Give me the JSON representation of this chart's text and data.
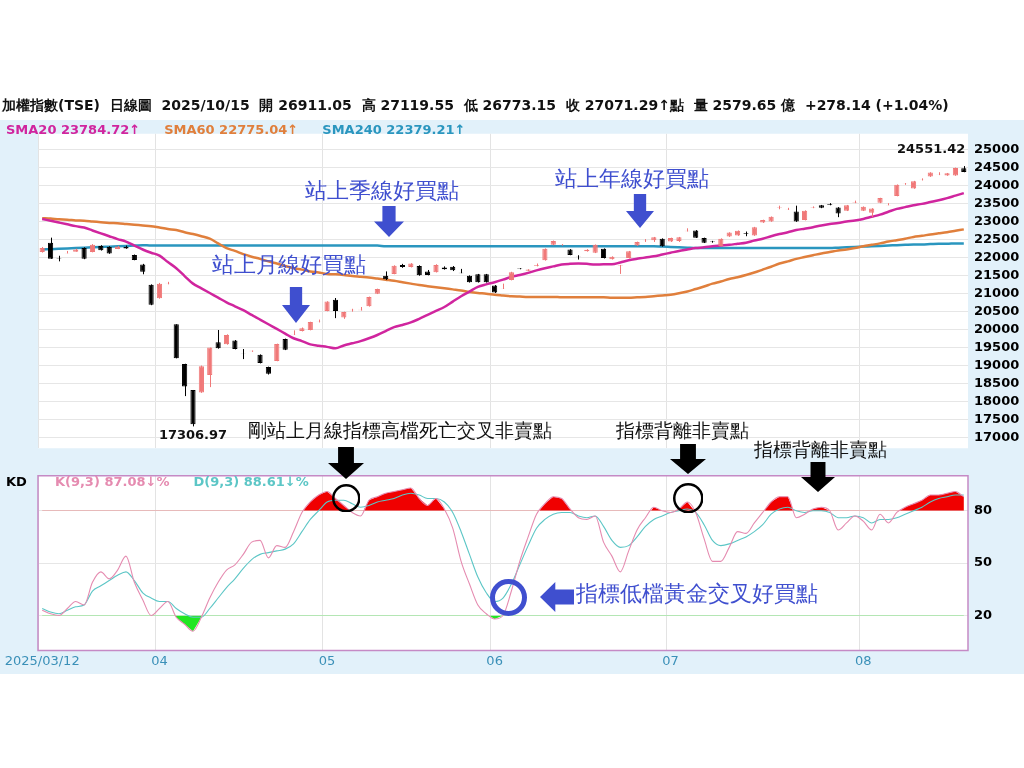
{
  "chart_data": [
    {
      "type": "candlestick",
      "title": "加權指數(TSE)  日線圖  2025/10/15  開 26911.05  高 27119.55  低 26773.15  收 27071.29↑點  量 2579.65 億  +278.14 (+1.04%)",
      "categories": [
        "2025/03/12",
        null,
        null,
        null,
        null,
        null,
        null,
        null,
        null,
        null,
        null,
        null,
        null,
        null,
        "04",
        null,
        null,
        null,
        null,
        null,
        null,
        null,
        null,
        null,
        null,
        null,
        null,
        null,
        null,
        null,
        null,
        null,
        null,
        null,
        "05",
        null,
        null,
        null,
        null,
        null,
        null,
        null,
        null,
        null,
        null,
        null,
        null,
        null,
        null,
        null,
        null,
        null,
        null,
        null,
        "06",
        null,
        null,
        null,
        null,
        null,
        null,
        null,
        null,
        null,
        null,
        null,
        null,
        null,
        null,
        null,
        null,
        null,
        null,
        null,
        null,
        "07",
        null,
        null,
        null,
        null,
        null,
        null,
        null,
        null,
        null,
        null,
        null,
        null,
        null,
        null,
        null,
        null,
        null,
        null,
        null,
        null,
        null,
        null,
        "08",
        null,
        null,
        null,
        null,
        null,
        null,
        null,
        null,
        null,
        null,
        null,
        null
      ],
      "ohlc": [
        [
          22160,
          22300,
          22143,
          22270
        ],
        [
          22420,
          22560,
          21970,
          21970
        ],
        [
          21990,
          22056,
          21900,
          21980
        ],
        [
          22120,
          22190,
          22120,
          22125
        ],
        [
          22170,
          22250,
          22170,
          22230
        ],
        [
          22270,
          22290,
          21960,
          21970
        ],
        [
          22160,
          22380,
          22150,
          22360
        ],
        [
          22330,
          22350,
          22200,
          22210
        ],
        [
          22300,
          22320,
          22110,
          22120
        ],
        [
          22245,
          22330,
          22240,
          22315
        ],
        [
          22310,
          22340,
          22250,
          22260
        ],
        [
          22080,
          22090,
          21930,
          21940
        ],
        [
          21810,
          21830,
          21540,
          21610
        ],
        [
          21250,
          21260,
          20680,
          20690
        ],
        [
          20870,
          21300,
          20860,
          21280
        ],
        [
          21290,
          21330,
          21260,
          21300
        ],
        [
          20150,
          20150,
          19200,
          19200
        ],
        [
          19040,
          19050,
          18150,
          18420
        ],
        [
          18320,
          18320,
          17306.97,
          17370
        ],
        [
          18250,
          19000,
          18240,
          18980
        ],
        [
          18740,
          19500,
          18400,
          19500
        ],
        [
          19650,
          19990,
          19470,
          19480
        ],
        [
          19590,
          19870,
          19580,
          19850
        ],
        [
          19700,
          19710,
          19450,
          19460
        ],
        [
          19350,
          19460,
          19180,
          19340
        ],
        [
          19400,
          19420,
          19380,
          19410
        ],
        [
          19300,
          19310,
          19060,
          19070
        ],
        [
          18960,
          18970,
          18750,
          18770
        ],
        [
          19130,
          19610,
          19120,
          19600
        ],
        [
          19740,
          19750,
          19430,
          19440
        ],
        [
          19850,
          19980,
          19850,
          19860
        ],
        [
          19960,
          20060,
          19950,
          20040
        ],
        [
          19990,
          20220,
          19980,
          20210
        ],
        [
          20230,
          20280,
          20200,
          20240
        ],
        [
          20520,
          20790,
          20510,
          20780
        ],
        [
          20830,
          20880,
          20320,
          20520
        ],
        [
          20340,
          20500,
          20300,
          20490
        ],
        [
          20540,
          20580,
          20500,
          20550
        ],
        [
          20540,
          20630,
          20530,
          20550
        ],
        [
          20650,
          20920,
          20640,
          20910
        ],
        [
          21000,
          21140,
          20990,
          21130
        ],
        [
          21500,
          21620,
          21380,
          21400
        ],
        [
          21550,
          21790,
          21540,
          21780
        ],
        [
          21800,
          21830,
          21720,
          21740
        ],
        [
          21740,
          21850,
          21730,
          21840
        ],
        [
          21770,
          21790,
          21500,
          21510
        ],
        [
          21620,
          21660,
          21510,
          21520
        ],
        [
          21600,
          21820,
          21590,
          21800
        ],
        [
          21730,
          21760,
          21670,
          21680
        ],
        [
          21750,
          21770,
          21630,
          21650
        ],
        [
          21580,
          21690,
          21570,
          21570
        ],
        [
          21500,
          21510,
          21310,
          21320
        ],
        [
          21540,
          21550,
          21310,
          21320
        ],
        [
          21540,
          21550,
          21310,
          21320
        ],
        [
          21230,
          21240,
          21020,
          21030
        ],
        [
          21150,
          21280,
          21130,
          21160
        ],
        [
          21380,
          21610,
          21370,
          21600
        ],
        [
          21700,
          21710,
          21680,
          21690
        ],
        [
          21640,
          21680,
          21630,
          21670
        ],
        [
          21780,
          21840,
          21760,
          21800
        ],
        [
          21930,
          22260,
          21920,
          22250
        ],
        [
          22360,
          22480,
          22350,
          22470
        ],
        [
          22350,
          22380,
          22340,
          22360
        ],
        [
          22230,
          22240,
          22070,
          22080
        ],
        [
          22050,
          22070,
          21950,
          22040
        ],
        [
          22180,
          22240,
          22170,
          22220
        ],
        [
          22140,
          22370,
          22130,
          22360
        ],
        [
          22250,
          22260,
          21980,
          21990
        ],
        [
          21960,
          22040,
          21950,
          22030
        ],
        [
          21780,
          21800,
          21550,
          21790
        ],
        [
          21990,
          22190,
          21980,
          22180
        ],
        [
          22340,
          22450,
          22330,
          22440
        ],
        [
          22480,
          22520,
          22440,
          22490
        ],
        [
          22490,
          22580,
          22440,
          22570
        ],
        [
          22530,
          22540,
          22310,
          22320
        ],
        [
          22450,
          22560,
          22440,
          22550
        ],
        [
          22470,
          22580,
          22440,
          22570
        ],
        [
          22740,
          22820,
          22730,
          22750
        ],
        [
          22760,
          22770,
          22550,
          22560
        ],
        [
          22550,
          22560,
          22410,
          22420
        ],
        [
          22450,
          22470,
          22420,
          22440
        ],
        [
          22330,
          22540,
          22320,
          22530
        ],
        [
          22590,
          22710,
          22580,
          22700
        ],
        [
          22620,
          22760,
          22610,
          22750
        ],
        [
          22680,
          22730,
          22600,
          22660
        ],
        [
          22620,
          22860,
          22610,
          22850
        ],
        [
          22980,
          23060,
          22970,
          23050
        ],
        [
          23010,
          23150,
          23000,
          23140
        ],
        [
          23400,
          23450,
          23350,
          23410
        ],
        [
          23350,
          23390,
          23330,
          23360
        ],
        [
          23290,
          23450,
          23000,
          23010
        ],
        [
          23050,
          23320,
          23040,
          23310
        ],
        [
          23400,
          23430,
          23380,
          23410
        ],
        [
          23460,
          23470,
          23380,
          23390
        ],
        [
          23490,
          23520,
          23460,
          23470
        ],
        [
          23400,
          23410,
          23130,
          23230
        ],
        [
          23310,
          23470,
          23300,
          23460
        ],
        [
          23540,
          23590,
          23520,
          23550
        ],
        [
          23310,
          23430,
          23300,
          23420
        ],
        [
          23250,
          23380,
          23130,
          23370
        ],
        [
          23530,
          23670,
          23520,
          23660
        ],
        [
          23460,
          23520,
          23460,
          23470
        ],
        [
          23720,
          24040,
          23710,
          24030
        ],
        [
          24050,
          24080,
          24030,
          24060
        ],
        [
          23930,
          24140,
          23920,
          24130
        ],
        [
          24170,
          24210,
          24150,
          24180
        ],
        [
          24260,
          24380,
          24250,
          24370
        ],
        [
          24300,
          24380,
          24300,
          24310
        ],
        [
          24290,
          24360,
          24280,
          24350
        ],
        [
          24290,
          24510,
          24280,
          24500
        ],
        [
          24490,
          24551.42,
          24380,
          24390
        ]
      ],
      "colors": [
        "#f07878",
        "#000000",
        "#000000",
        "#f07878",
        "#f07878",
        "#000000",
        "#f07878",
        "#000000",
        "#000000",
        "#f07878",
        "#000000",
        "#000000",
        "#000000",
        "#000000",
        "#f07878",
        "#f07878",
        "#000000",
        "#000000",
        "#000000",
        "#f07878",
        "#f07878",
        "#000000",
        "#f07878",
        "#000000",
        "#000000",
        "#f07878",
        "#000000",
        "#000000",
        "#f07878",
        "#000000",
        "#f07878",
        "#f07878",
        "#f07878",
        "#f07878",
        "#f07878",
        "#000000",
        "#f07878",
        "#f07878",
        "#f07878",
        "#f07878",
        "#f07878",
        "#000000",
        "#f07878",
        "#000000",
        "#f07878",
        "#000000",
        "#000000",
        "#f07878",
        "#000000",
        "#000000",
        "#000000",
        "#000000",
        "#000000",
        "#000000",
        "#000000",
        "#f07878",
        "#f07878",
        "#000000",
        "#f07878",
        "#f07878",
        "#f07878",
        "#f07878",
        "#f07878",
        "#000000",
        "#000000",
        "#f07878",
        "#f07878",
        "#000000",
        "#f07878",
        "#f07878",
        "#f07878",
        "#f07878",
        "#f07878",
        "#f07878",
        "#000000",
        "#f07878",
        "#f07878",
        "#f07878",
        "#000000",
        "#000000",
        "#000000",
        "#f07878",
        "#f07878",
        "#f07878",
        "#000000",
        "#f07878",
        "#f07878",
        "#f07878",
        "#f07878",
        "#f07878",
        "#000000",
        "#f07878",
        "#f07878",
        "#000000",
        "#000000",
        "#000000",
        "#f07878",
        "#f07878",
        "#f07878",
        "#f07878",
        "#f07878",
        "#f07878",
        "#f07878",
        "#f07878",
        "#f07878",
        "#f07878",
        "#f07878",
        "#f07878",
        "#f07878",
        "#f07878",
        "#000000"
      ],
      "series": [
        {
          "name": "SMA20 23784.72↑",
          "type": "line",
          "color": "#d0259e",
          "values": [
            23080,
            23030,
            22980,
            22930,
            22880,
            22840,
            22760,
            22680,
            22600,
            22520,
            22450,
            22340,
            22230,
            22140,
            22060,
            21880,
            21710,
            21490,
            21280,
            21150,
            21020,
            20890,
            20760,
            20650,
            20540,
            20410,
            20280,
            20150,
            20020,
            19890,
            19760,
            19680,
            19590,
            19550,
            19520,
            19480,
            19560,
            19620,
            19680,
            19760,
            19850,
            19960,
            20070,
            20130,
            20200,
            20300,
            20410,
            20520,
            20630,
            20780,
            20930,
            21060,
            21190,
            21260,
            21320,
            21390,
            21470,
            21520,
            21580,
            21650,
            21710,
            21760,
            21810,
            21830,
            21840,
            21830,
            21810,
            21820,
            21820,
            21870,
            21930,
            21970,
            22010,
            22040,
            22090,
            22140,
            22190,
            22230,
            22270,
            22290,
            22320,
            22340,
            22360,
            22390,
            22420,
            22480,
            22530,
            22600,
            22660,
            22710,
            22770,
            22810,
            22850,
            22900,
            22940,
            22970,
            23010,
            23040,
            23080,
            23140,
            23200,
            23280,
            23360,
            23410,
            23460,
            23500,
            23550,
            23600,
            23660,
            23730,
            23800
          ]
        },
        {
          "name": "SMA60 22775.04↑",
          "type": "line",
          "color": "#e07f3c",
          "values": [
            23100,
            23090,
            23070,
            23060,
            23040,
            23030,
            23010,
            22990,
            22970,
            22960,
            22940,
            22920,
            22900,
            22880,
            22840,
            22800,
            22770,
            22710,
            22660,
            22600,
            22530,
            22400,
            22270,
            22190,
            22100,
            22030,
            21970,
            21900,
            21840,
            21770,
            21710,
            21670,
            21620,
            21590,
            21550,
            21540,
            21520,
            21490,
            21470,
            21450,
            21420,
            21390,
            21360,
            21320,
            21280,
            21240,
            21210,
            21180,
            21150,
            21120,
            21090,
            21050,
            21020,
            21000,
            20970,
            20950,
            20930,
            20920,
            20910,
            20910,
            20910,
            20910,
            20900,
            20900,
            20900,
            20900,
            20900,
            20900,
            20890,
            20890,
            20890,
            20900,
            20910,
            20930,
            20950,
            20970,
            21010,
            21060,
            21130,
            21200,
            21280,
            21340,
            21410,
            21460,
            21520,
            21590,
            21670,
            21750,
            21840,
            21900,
            21970,
            22020,
            22070,
            22120,
            22160,
            22200,
            22230,
            22270,
            22320,
            22360,
            22400,
            22450,
            22490,
            22530,
            22580,
            22610,
            22650,
            22680,
            22710,
            22750,
            22790
          ]
        },
        {
          "name": "SMA240 22379.21↑",
          "type": "line",
          "color": "#2a96bf",
          "values": [
            22230,
            22240,
            22250,
            22260,
            22270,
            22280,
            22290,
            22300,
            22310,
            22320,
            22330,
            22340,
            22350,
            22340,
            22340,
            22340,
            22340,
            22340,
            22340,
            22340,
            22340,
            22340,
            22340,
            22340,
            22340,
            22340,
            22340,
            22340,
            22340,
            22340,
            22340,
            22340,
            22340,
            22340,
            22340,
            22340,
            22340,
            22340,
            22340,
            22340,
            22340,
            22320,
            22320,
            22320,
            22320,
            22320,
            22320,
            22320,
            22320,
            22320,
            22320,
            22320,
            22320,
            22320,
            22320,
            22320,
            22320,
            22320,
            22320,
            22320,
            22320,
            22320,
            22320,
            22320,
            22320,
            22320,
            22320,
            22320,
            22320,
            22320,
            22320,
            22320,
            22320,
            22320,
            22310,
            22300,
            22290,
            22280,
            22270,
            22270,
            22270,
            22270,
            22270,
            22270,
            22270,
            22270,
            22270,
            22270,
            22270,
            22270,
            22270,
            22270,
            22270,
            22270,
            22270,
            22280,
            22290,
            22300,
            22310,
            22320,
            22330,
            22340,
            22350,
            22360,
            22370,
            22370,
            22380,
            22390,
            22390,
            22400,
            22400
          ]
        }
      ],
      "ylim": [
        16700,
        25450
      ],
      "yticks": [
        17000,
        17500,
        18000,
        18500,
        19000,
        19500,
        20000,
        20500,
        21000,
        21500,
        22000,
        22500,
        23000,
        23500,
        24000,
        24500,
        25000
      ],
      "grid": true,
      "legend": "top left",
      "tick_labels": "y",
      "annotations": [
        {
          "text": "17306.97",
          "y": 17306.97
        },
        "24551.42",
        "站上月線好買點",
        "站上季線好買點",
        "站上年線好買點"
      ]
    },
    {
      "type": "line",
      "title": "KD",
      "categories": [
        "2025/03/12",
        null,
        null,
        null,
        null,
        null,
        null,
        null,
        null,
        null,
        null,
        null,
        null,
        null,
        "04",
        null,
        null,
        null,
        null,
        null,
        null,
        null,
        null,
        null,
        null,
        null,
        null,
        null,
        null,
        null,
        null,
        null,
        null,
        null,
        "05",
        null,
        null,
        null,
        null,
        null,
        null,
        null,
        null,
        null,
        null,
        null,
        null,
        null,
        null,
        null,
        null,
        null,
        null,
        null,
        "06",
        null,
        null,
        null,
        null,
        null,
        null,
        null,
        null,
        null,
        null,
        null,
        null,
        null,
        null,
        null,
        null,
        null,
        null,
        null,
        null,
        "07",
        null,
        null,
        null,
        null,
        null,
        null,
        null,
        null,
        null,
        null,
        null,
        null,
        null,
        null,
        null,
        null,
        null,
        null,
        null,
        null,
        null,
        null,
        "08",
        null,
        null,
        null,
        null,
        null,
        null,
        null,
        null,
        null,
        null,
        null,
        null
      ],
      "series": [
        {
          "name": "K(9,3) 87.08↓%",
          "color": "#e58bb0",
          "values": [
            23,
            21,
            20,
            24,
            28,
            26,
            39,
            45,
            41,
            46,
            54,
            39,
            29,
            20,
            24,
            28,
            19,
            15,
            11,
            19,
            30,
            39,
            46,
            49,
            55,
            62,
            63,
            53,
            60,
            59,
            68,
            79,
            85,
            89,
            91,
            87,
            83,
            79,
            77,
            86,
            88,
            90,
            91,
            92,
            93,
            87,
            83,
            87,
            81,
            70,
            51,
            38,
            26,
            21,
            18,
            20,
            34,
            51,
            65,
            78,
            84,
            88,
            87,
            81,
            76,
            75,
            77,
            62,
            54,
            45,
            57,
            69,
            76,
            82,
            80,
            79,
            81,
            85,
            79,
            64,
            51,
            51,
            59,
            68,
            67,
            73,
            79,
            85,
            88,
            88,
            76,
            78,
            81,
            82,
            80,
            69,
            73,
            77,
            74,
            69,
            78,
            73,
            79,
            82,
            84,
            86,
            89,
            89,
            90,
            91,
            88
          ]
        },
        {
          "name": "D(9,3) 88.61↓%",
          "color": "#5cc6c6",
          "values": [
            24,
            22,
            21,
            23,
            25,
            26,
            34,
            37,
            40,
            43,
            45,
            40,
            33,
            30,
            28,
            28,
            24,
            21,
            19,
            19,
            24,
            30,
            36,
            41,
            47,
            52,
            55,
            56,
            57,
            58,
            61,
            68,
            75,
            80,
            85,
            86,
            86,
            84,
            82,
            83,
            85,
            86,
            87,
            89,
            90,
            89,
            87,
            87,
            85,
            79,
            68,
            55,
            42,
            33,
            28,
            30,
            38,
            49,
            60,
            70,
            75,
            78,
            79,
            79,
            77,
            76,
            77,
            71,
            63,
            59,
            60,
            65,
            71,
            75,
            77,
            79,
            80,
            81,
            79,
            72,
            63,
            60,
            61,
            63,
            65,
            68,
            72,
            78,
            81,
            82,
            80,
            79,
            80,
            80,
            79,
            76,
            76,
            77,
            76,
            73,
            75,
            75,
            76,
            78,
            80,
            82,
            85,
            87,
            88,
            89,
            89
          ]
        }
      ],
      "ylim": [
        0,
        100
      ],
      "yticks": [
        20,
        50,
        80
      ],
      "grid": true,
      "legend": "top left",
      "annotations": [
        "剛站上月線指標高檔死亡交叉非賣點",
        "指標背離非賣點",
        "指標背離非賣點",
        "指標低檔黃金交叉好買點"
      ]
    }
  ]
}
